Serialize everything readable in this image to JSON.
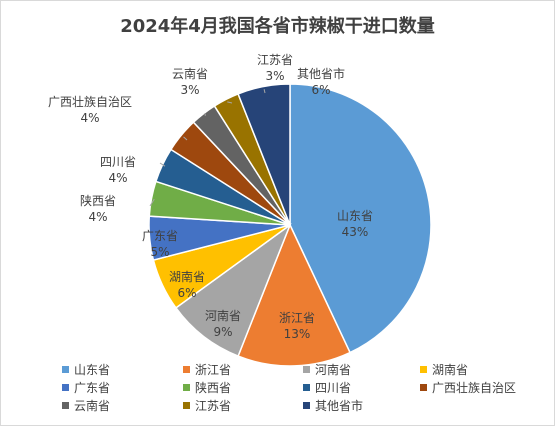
{
  "chart_data": {
    "type": "pie",
    "title": "2024年4月我国各省市辣椒干进口数量",
    "slices": [
      {
        "label": "山东省",
        "value": 43,
        "percent_label": "43%",
        "color": "#5b9bd5"
      },
      {
        "label": "浙江省",
        "value": 13,
        "percent_label": "13%",
        "color": "#ed7d31"
      },
      {
        "label": "河南省",
        "value": 9,
        "percent_label": "9%",
        "color": "#a5a5a5"
      },
      {
        "label": "湖南省",
        "value": 6,
        "percent_label": "6%",
        "color": "#ffc000"
      },
      {
        "label": "广东省",
        "value": 5,
        "percent_label": "5%",
        "color": "#4472c4"
      },
      {
        "label": "陕西省",
        "value": 4,
        "percent_label": "4%",
        "color": "#70ad47"
      },
      {
        "label": "四川省",
        "value": 4,
        "percent_label": "4%",
        "color": "#255e91"
      },
      {
        "label": "广西壮族自治区",
        "value": 4,
        "percent_label": "4%",
        "color": "#9e480e"
      },
      {
        "label": "云南省",
        "value": 3,
        "percent_label": "3%",
        "color": "#636363"
      },
      {
        "label": "江苏省",
        "value": 3,
        "percent_label": "3%",
        "color": "#997300"
      },
      {
        "label": "其他省市",
        "value": 6,
        "percent_label": "6%",
        "color": "#264478"
      }
    ],
    "legend": "bottom"
  }
}
